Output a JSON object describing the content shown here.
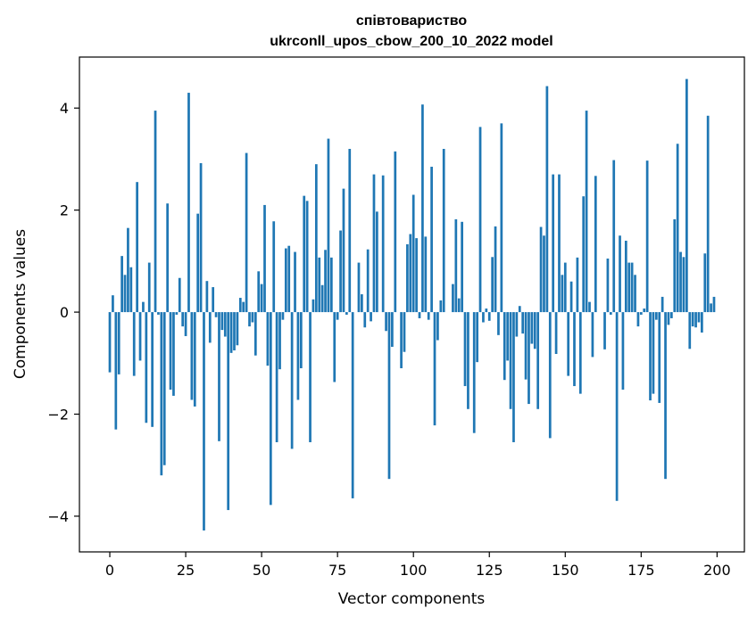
{
  "chart_data": {
    "type": "bar",
    "title_line1": "співтовариство",
    "title_line2": "ukrconll_upos_cbow_200_10_2022 model",
    "xlabel": "Vector components",
    "ylabel": "Components values",
    "xlim": [
      -10,
      209
    ],
    "ylim": [
      -4.7,
      5.0
    ],
    "xticks": [
      0,
      25,
      50,
      75,
      100,
      125,
      150,
      175,
      200
    ],
    "yticks": [
      -4,
      -2,
      0,
      2,
      4
    ],
    "xtick_labels": [
      "0",
      "25",
      "50",
      "75",
      "100",
      "125",
      "150",
      "175",
      "200"
    ],
    "ytick_labels": [
      "−4",
      "−2",
      "0",
      "2",
      "4"
    ],
    "bar_color": "#1f77b4",
    "grid": false,
    "values": [
      -1.18,
      0.33,
      -2.3,
      -1.22,
      1.1,
      0.73,
      1.65,
      0.88,
      -1.25,
      2.55,
      -0.95,
      0.2,
      -2.17,
      0.97,
      -2.25,
      3.95,
      -0.05,
      -3.2,
      -3.0,
      2.13,
      -1.52,
      -1.64,
      -0.05,
      0.67,
      -0.28,
      -0.47,
      4.3,
      -1.72,
      -1.85,
      1.93,
      2.92,
      -4.28,
      0.61,
      -0.6,
      0.49,
      -0.1,
      -2.53,
      -0.35,
      -0.48,
      -3.88,
      -0.8,
      -0.75,
      -0.65,
      0.28,
      0.2,
      3.12,
      -0.28,
      -0.2,
      -0.85,
      0.8,
      0.55,
      2.1,
      -1.05,
      -3.78,
      1.78,
      -2.55,
      -1.12,
      -0.15,
      1.25,
      1.3,
      -2.68,
      1.18,
      -1.72,
      -1.1,
      2.28,
      2.18,
      -2.55,
      0.25,
      2.9,
      1.07,
      0.53,
      1.22,
      3.4,
      1.07,
      -1.37,
      -0.15,
      1.6,
      2.42,
      -0.05,
      3.2,
      -3.65,
      0.0,
      0.97,
      0.35,
      -0.3,
      1.23,
      -0.18,
      2.7,
      1.97,
      0.0,
      2.68,
      -0.37,
      -3.27,
      -0.68,
      3.15,
      0.0,
      -1.1,
      -0.78,
      1.33,
      1.53,
      2.3,
      1.45,
      -0.12,
      4.07,
      1.48,
      -0.15,
      2.85,
      -2.22,
      -0.55,
      0.23,
      3.2,
      0.0,
      0.0,
      0.55,
      1.82,
      0.27,
      1.77,
      -1.45,
      -1.9,
      0.0,
      -2.37,
      -0.98,
      3.63,
      -0.2,
      0.07,
      -0.17,
      1.08,
      1.68,
      -0.45,
      3.7,
      -1.33,
      -0.95,
      -1.9,
      -2.55,
      -0.48,
      0.12,
      -0.42,
      -1.32,
      -1.8,
      -0.62,
      -0.72,
      -1.9,
      1.67,
      1.5,
      4.43,
      -2.47,
      2.7,
      -0.82,
      2.7,
      0.73,
      0.97,
      -1.25,
      0.6,
      -1.45,
      1.07,
      -1.6,
      2.27,
      3.95,
      0.2,
      -0.88,
      2.67,
      0.0,
      0.0,
      -0.73,
      1.05,
      -0.05,
      2.98,
      -3.7,
      1.5,
      -1.52,
      1.4,
      0.97,
      0.97,
      0.73,
      -0.28,
      -0.05,
      0.07,
      2.97,
      -1.73,
      -1.6,
      -0.15,
      -1.78,
      0.3,
      -3.27,
      -0.25,
      -0.12,
      1.82,
      3.3,
      1.18,
      1.08,
      4.57,
      -0.72,
      -0.28,
      -0.3,
      -0.2,
      -0.4,
      1.15,
      3.85,
      0.17,
      0.3
    ]
  }
}
